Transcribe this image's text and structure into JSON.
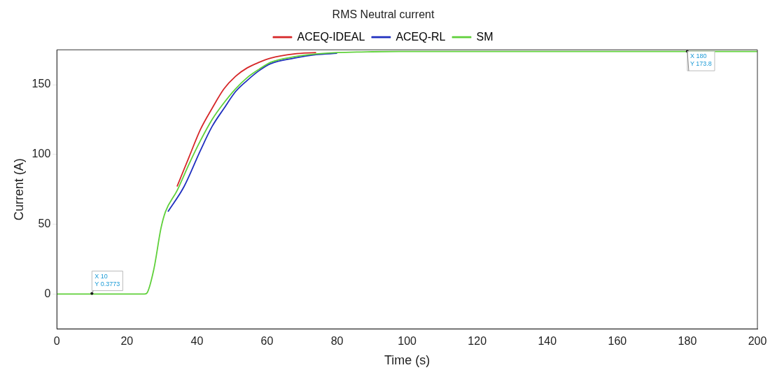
{
  "chart_data": {
    "type": "line",
    "title": "RMS Neutral current",
    "xlabel": "Time (s)",
    "ylabel": "Current (A)",
    "xlim": [
      0,
      200
    ],
    "ylim": [
      -25,
      175
    ],
    "xticks": [
      0,
      20,
      40,
      60,
      80,
      100,
      120,
      140,
      160,
      180,
      200
    ],
    "yticks": [
      0,
      50,
      100,
      150
    ],
    "grid": false,
    "legend": "top",
    "marker": "none",
    "line_style": "solid",
    "series": [
      {
        "name": "ACEQ-IDEAL",
        "color": "#d62728",
        "x": [
          34.3,
          37.7,
          41,
          44.3,
          47.7,
          51,
          54.3,
          57.7,
          61,
          67.7,
          74
        ],
        "values": [
          77,
          98,
          118,
          133,
          147,
          156,
          162,
          166,
          169,
          172,
          173
        ]
      },
      {
        "name": "ACEQ-RL",
        "color": "#1f2fbf",
        "x": [
          31.7,
          36.3,
          41,
          44.3,
          47.7,
          51,
          54.3,
          57.7,
          61,
          67.7,
          74,
          80
        ],
        "values": [
          59,
          77,
          103,
          120,
          133,
          145,
          153,
          160,
          165,
          169,
          171.5,
          172.5
        ]
      },
      {
        "name": "SM",
        "color": "#5fd03a",
        "x": [
          0,
          25,
          25.6,
          27.7,
          29.7,
          31,
          34.3,
          37.7,
          41,
          44.3,
          47.7,
          51,
          54.3,
          57.7,
          61,
          67.7,
          74,
          80,
          90,
          100,
          120,
          150,
          180,
          200
        ],
        "values": [
          0,
          0,
          0.4,
          18,
          47,
          59,
          74,
          93,
          110,
          125,
          137,
          147,
          155,
          161,
          166,
          170,
          172,
          173,
          173.6,
          173.8,
          173.8,
          173.8,
          173.8,
          173.8
        ]
      }
    ],
    "annotations": [
      {
        "text": "X 10\nY 0.3773",
        "x": 10,
        "y": 0.3773
      },
      {
        "text": "X 180\nY 173.8",
        "x": 180,
        "y": 173.8
      }
    ]
  }
}
